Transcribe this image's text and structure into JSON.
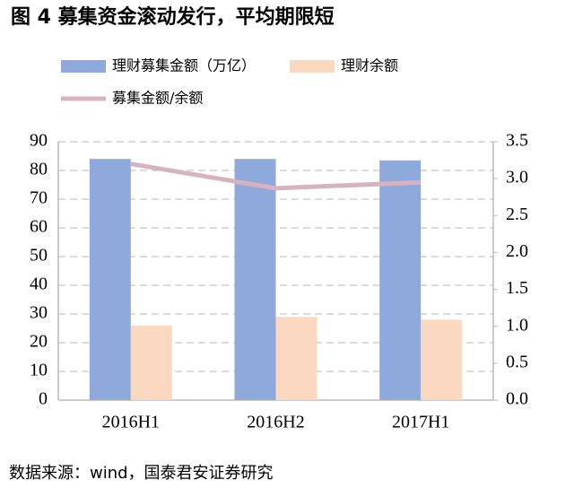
{
  "chart_data": {
    "type": "bar",
    "title": "图 4 募集资金滚动发行，平均期限短",
    "categories": [
      "2016H1",
      "2016H2",
      "2017H1"
    ],
    "series": [
      {
        "name": "理财募集金额（万亿）",
        "color": "#8fa9dc",
        "type": "bar",
        "values": [
          84,
          84,
          83.5
        ]
      },
      {
        "name": "理财余额",
        "color": "#fbd9c0",
        "type": "bar",
        "values": [
          26,
          29,
          28
        ]
      },
      {
        "name": "募集金额/余额",
        "color": "#d6b3c2",
        "type": "line",
        "axis": "y2",
        "values": [
          3.2,
          2.87,
          2.95
        ]
      }
    ],
    "ylim": [
      0,
      90
    ],
    "yticks": [
      0,
      10,
      20,
      30,
      40,
      50,
      60,
      70,
      80,
      90
    ],
    "y2lim": [
      0,
      3.5
    ],
    "y2ticks": [
      {
        "value": 0,
        "label": "0.0"
      },
      0.5,
      {
        "value": 1,
        "label": "1.0"
      },
      1.5,
      {
        "value": 2,
        "label": "2.0"
      },
      2.5,
      {
        "value": 3,
        "label": "3.0"
      },
      3.5
    ],
    "grid": true,
    "source": "数据来源：wind，国泰君安证券研究"
  }
}
